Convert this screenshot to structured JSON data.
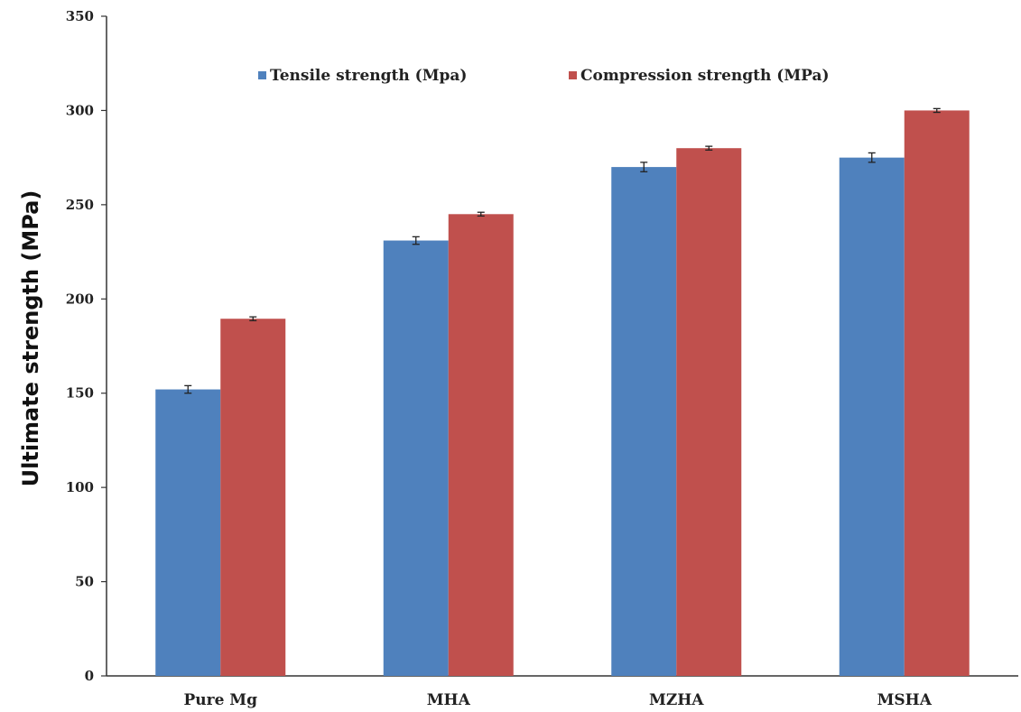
{
  "chart_data": {
    "type": "bar",
    "title": "",
    "xlabel": "",
    "ylabel": "Ultimate strength (MPa)",
    "ylim": [
      0,
      350
    ],
    "yticks": [
      0,
      50,
      100,
      150,
      200,
      250,
      300,
      350
    ],
    "categories": [
      "Pure Mg",
      "MHA",
      "MZHA",
      "MSHA"
    ],
    "series": [
      {
        "name": "Tensile strength (Mpa)",
        "color": "#4F81BD",
        "values": [
          152,
          231,
          270,
          275
        ],
        "errors": [
          2,
          2,
          2.5,
          2.5
        ]
      },
      {
        "name": "Compression strength (MPa)",
        "color": "#C0504D",
        "values": [
          189.5,
          245,
          280,
          300
        ],
        "errors": [
          1,
          1,
          1,
          1
        ]
      }
    ],
    "grid": false,
    "legend_position": "top-center",
    "error_bars": true
  }
}
